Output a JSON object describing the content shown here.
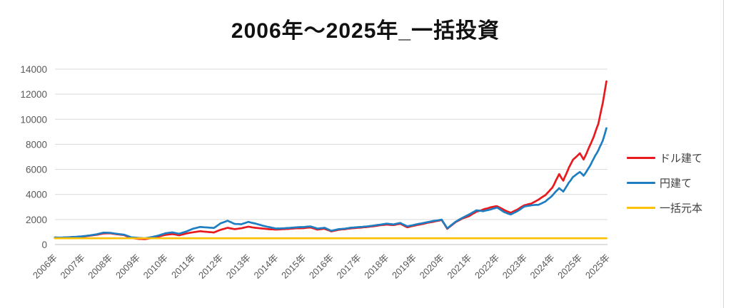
{
  "title": "2006年～2025年_一括投資",
  "legend": {
    "position": "right",
    "items": [
      {
        "label": "ドル建て",
        "color": "#e8191f"
      },
      {
        "label": "円建て",
        "color": "#1f7ec1"
      },
      {
        "label": "一括元本",
        "color": "#ffc000"
      }
    ]
  },
  "colors": {
    "gridline": "#d9d9d9",
    "axis_line": "#bfbfbf",
    "tick_text": "#595959",
    "background": "#ffffff"
  },
  "chart_data": {
    "type": "line",
    "title": "2006年～2025年_一括投資",
    "xlabel": "",
    "ylabel": "",
    "grid": true,
    "legend_position": "right",
    "y_axis": {
      "min": 0,
      "max": 14000,
      "tick_interval": 2000,
      "tick_labels": [
        "0",
        "2000",
        "4000",
        "6000",
        "8000",
        "10000",
        "12000",
        "14000"
      ]
    },
    "x_axis": {
      "tick_labels": [
        "2006年",
        "2007年",
        "2008年",
        "2009年",
        "2010年",
        "2011年",
        "2012年",
        "2013年",
        "2014年",
        "2015年",
        "2016年",
        "2017年",
        "2018年",
        "2019年",
        "2020年",
        "2021年",
        "2022年",
        "2023年",
        "2024年",
        "2025年",
        "2025年"
      ]
    },
    "series": [
      {
        "name": "ドル建て",
        "color": "#e8191f",
        "points": [
          [
            2006.0,
            560
          ],
          [
            2006.25,
            545
          ],
          [
            2006.5,
            575
          ],
          [
            2006.75,
            600
          ],
          [
            2007.0,
            630
          ],
          [
            2007.25,
            700
          ],
          [
            2007.5,
            780
          ],
          [
            2007.75,
            880
          ],
          [
            2008.0,
            900
          ],
          [
            2008.25,
            820
          ],
          [
            2008.5,
            760
          ],
          [
            2008.75,
            520
          ],
          [
            2009.0,
            460
          ],
          [
            2009.25,
            430
          ],
          [
            2009.5,
            520
          ],
          [
            2009.75,
            640
          ],
          [
            2010.0,
            780
          ],
          [
            2010.25,
            840
          ],
          [
            2010.5,
            740
          ],
          [
            2010.75,
            880
          ],
          [
            2011.0,
            980
          ],
          [
            2011.25,
            1060
          ],
          [
            2011.5,
            1010
          ],
          [
            2011.75,
            960
          ],
          [
            2012.0,
            1180
          ],
          [
            2012.25,
            1330
          ],
          [
            2012.5,
            1230
          ],
          [
            2012.75,
            1300
          ],
          [
            2013.0,
            1430
          ],
          [
            2013.25,
            1340
          ],
          [
            2013.5,
            1270
          ],
          [
            2013.75,
            1230
          ],
          [
            2014.0,
            1190
          ],
          [
            2014.25,
            1220
          ],
          [
            2014.5,
            1260
          ],
          [
            2014.75,
            1300
          ],
          [
            2015.0,
            1320
          ],
          [
            2015.25,
            1360
          ],
          [
            2015.5,
            1190
          ],
          [
            2015.75,
            1270
          ],
          [
            2016.0,
            1060
          ],
          [
            2016.25,
            1180
          ],
          [
            2016.5,
            1230
          ],
          [
            2016.75,
            1300
          ],
          [
            2017.0,
            1340
          ],
          [
            2017.25,
            1390
          ],
          [
            2017.5,
            1450
          ],
          [
            2017.75,
            1530
          ],
          [
            2018.0,
            1600
          ],
          [
            2018.25,
            1560
          ],
          [
            2018.5,
            1660
          ],
          [
            2018.75,
            1380
          ],
          [
            2019.0,
            1500
          ],
          [
            2019.25,
            1620
          ],
          [
            2019.5,
            1740
          ],
          [
            2019.75,
            1850
          ],
          [
            2020.0,
            1950
          ],
          [
            2020.2,
            1250
          ],
          [
            2020.5,
            1780
          ],
          [
            2020.75,
            2080
          ],
          [
            2021.0,
            2280
          ],
          [
            2021.25,
            2600
          ],
          [
            2021.5,
            2800
          ],
          [
            2021.75,
            2950
          ],
          [
            2022.0,
            3060
          ],
          [
            2022.25,
            2760
          ],
          [
            2022.5,
            2550
          ],
          [
            2022.75,
            2820
          ],
          [
            2023.0,
            3160
          ],
          [
            2023.25,
            3280
          ],
          [
            2023.5,
            3580
          ],
          [
            2023.75,
            3950
          ],
          [
            2024.0,
            4530
          ],
          [
            2024.25,
            5600
          ],
          [
            2024.4,
            5100
          ],
          [
            2024.6,
            6100
          ],
          [
            2024.75,
            6740
          ],
          [
            2025.0,
            7260
          ],
          [
            2025.1,
            6800
          ],
          [
            2025.3,
            8100
          ],
          [
            2025.5,
            9600
          ],
          [
            2025.62,
            11200
          ],
          [
            2025.72,
            12900
          ]
        ]
      },
      {
        "name": "円建て",
        "color": "#1f7ec1",
        "points": [
          [
            2006.0,
            555
          ],
          [
            2006.25,
            560
          ],
          [
            2006.5,
            590
          ],
          [
            2006.75,
            620
          ],
          [
            2007.0,
            660
          ],
          [
            2007.25,
            730
          ],
          [
            2007.5,
            810
          ],
          [
            2007.75,
            950
          ],
          [
            2008.0,
            930
          ],
          [
            2008.25,
            850
          ],
          [
            2008.5,
            790
          ],
          [
            2008.75,
            580
          ],
          [
            2009.0,
            530
          ],
          [
            2009.25,
            500
          ],
          [
            2009.5,
            590
          ],
          [
            2009.75,
            720
          ],
          [
            2010.0,
            900
          ],
          [
            2010.25,
            970
          ],
          [
            2010.5,
            860
          ],
          [
            2010.75,
            1040
          ],
          [
            2011.0,
            1260
          ],
          [
            2011.25,
            1400
          ],
          [
            2011.5,
            1360
          ],
          [
            2011.75,
            1320
          ],
          [
            2012.0,
            1700
          ],
          [
            2012.25,
            1890
          ],
          [
            2012.5,
            1650
          ],
          [
            2012.75,
            1620
          ],
          [
            2013.0,
            1800
          ],
          [
            2013.25,
            1680
          ],
          [
            2013.5,
            1520
          ],
          [
            2013.75,
            1400
          ],
          [
            2014.0,
            1270
          ],
          [
            2014.25,
            1290
          ],
          [
            2014.5,
            1330
          ],
          [
            2014.75,
            1380
          ],
          [
            2015.0,
            1400
          ],
          [
            2015.25,
            1440
          ],
          [
            2015.5,
            1270
          ],
          [
            2015.75,
            1340
          ],
          [
            2016.0,
            1100
          ],
          [
            2016.25,
            1220
          ],
          [
            2016.5,
            1270
          ],
          [
            2016.75,
            1350
          ],
          [
            2017.0,
            1390
          ],
          [
            2017.25,
            1440
          ],
          [
            2017.5,
            1500
          ],
          [
            2017.75,
            1580
          ],
          [
            2018.0,
            1660
          ],
          [
            2018.25,
            1610
          ],
          [
            2018.5,
            1730
          ],
          [
            2018.75,
            1450
          ],
          [
            2019.0,
            1570
          ],
          [
            2019.25,
            1690
          ],
          [
            2019.5,
            1800
          ],
          [
            2019.75,
            1910
          ],
          [
            2020.0,
            2000
          ],
          [
            2020.2,
            1300
          ],
          [
            2020.5,
            1820
          ],
          [
            2020.75,
            2120
          ],
          [
            2021.0,
            2400
          ],
          [
            2021.25,
            2720
          ],
          [
            2021.5,
            2650
          ],
          [
            2021.75,
            2800
          ],
          [
            2022.0,
            2940
          ],
          [
            2022.25,
            2600
          ],
          [
            2022.5,
            2400
          ],
          [
            2022.75,
            2680
          ],
          [
            2023.0,
            3040
          ],
          [
            2023.25,
            3120
          ],
          [
            2023.5,
            3160
          ],
          [
            2023.75,
            3420
          ],
          [
            2024.0,
            3890
          ],
          [
            2024.25,
            4500
          ],
          [
            2024.4,
            4250
          ],
          [
            2024.6,
            4950
          ],
          [
            2024.75,
            5370
          ],
          [
            2025.0,
            5790
          ],
          [
            2025.1,
            5500
          ],
          [
            2025.3,
            6400
          ],
          [
            2025.5,
            7500
          ],
          [
            2025.62,
            8300
          ],
          [
            2025.72,
            9300
          ]
        ]
      },
      {
        "name": "一括元本",
        "color": "#ffc000",
        "points": [
          [
            2006.0,
            500
          ],
          [
            2025.72,
            500
          ]
        ]
      }
    ]
  }
}
